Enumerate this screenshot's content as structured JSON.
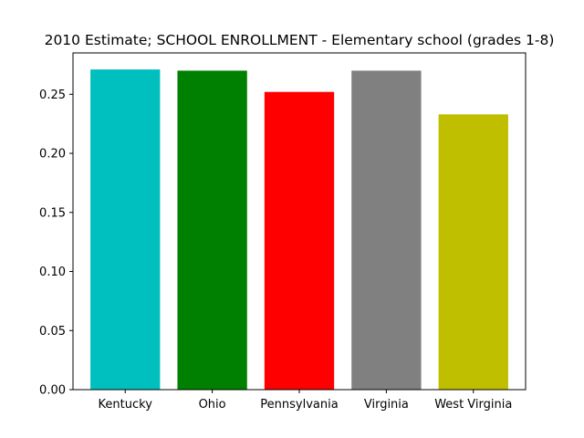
{
  "chart_data": {
    "type": "bar",
    "title": "2010 Estimate; SCHOOL ENROLLMENT - Elementary school (grades 1-8)",
    "xlabel": "",
    "ylabel": "",
    "categories": [
      " Kentucky",
      " Ohio",
      " Pennsylvania",
      " Virginia",
      " West Virginia"
    ],
    "values": [
      0.271,
      0.27,
      0.252,
      0.27,
      0.233
    ],
    "colors": [
      "#00bfbf",
      "#008000",
      "#ff0000",
      "#808080",
      "#bfbf00"
    ],
    "ylim": [
      0,
      0.285
    ],
    "yticks": [
      0.0,
      0.05,
      0.1,
      0.15,
      0.2,
      0.25
    ],
    "ytick_labels": [
      "0.00",
      "0.05",
      "0.10",
      "0.15",
      "0.20",
      "0.25"
    ],
    "grid": false,
    "legend": "none"
  }
}
